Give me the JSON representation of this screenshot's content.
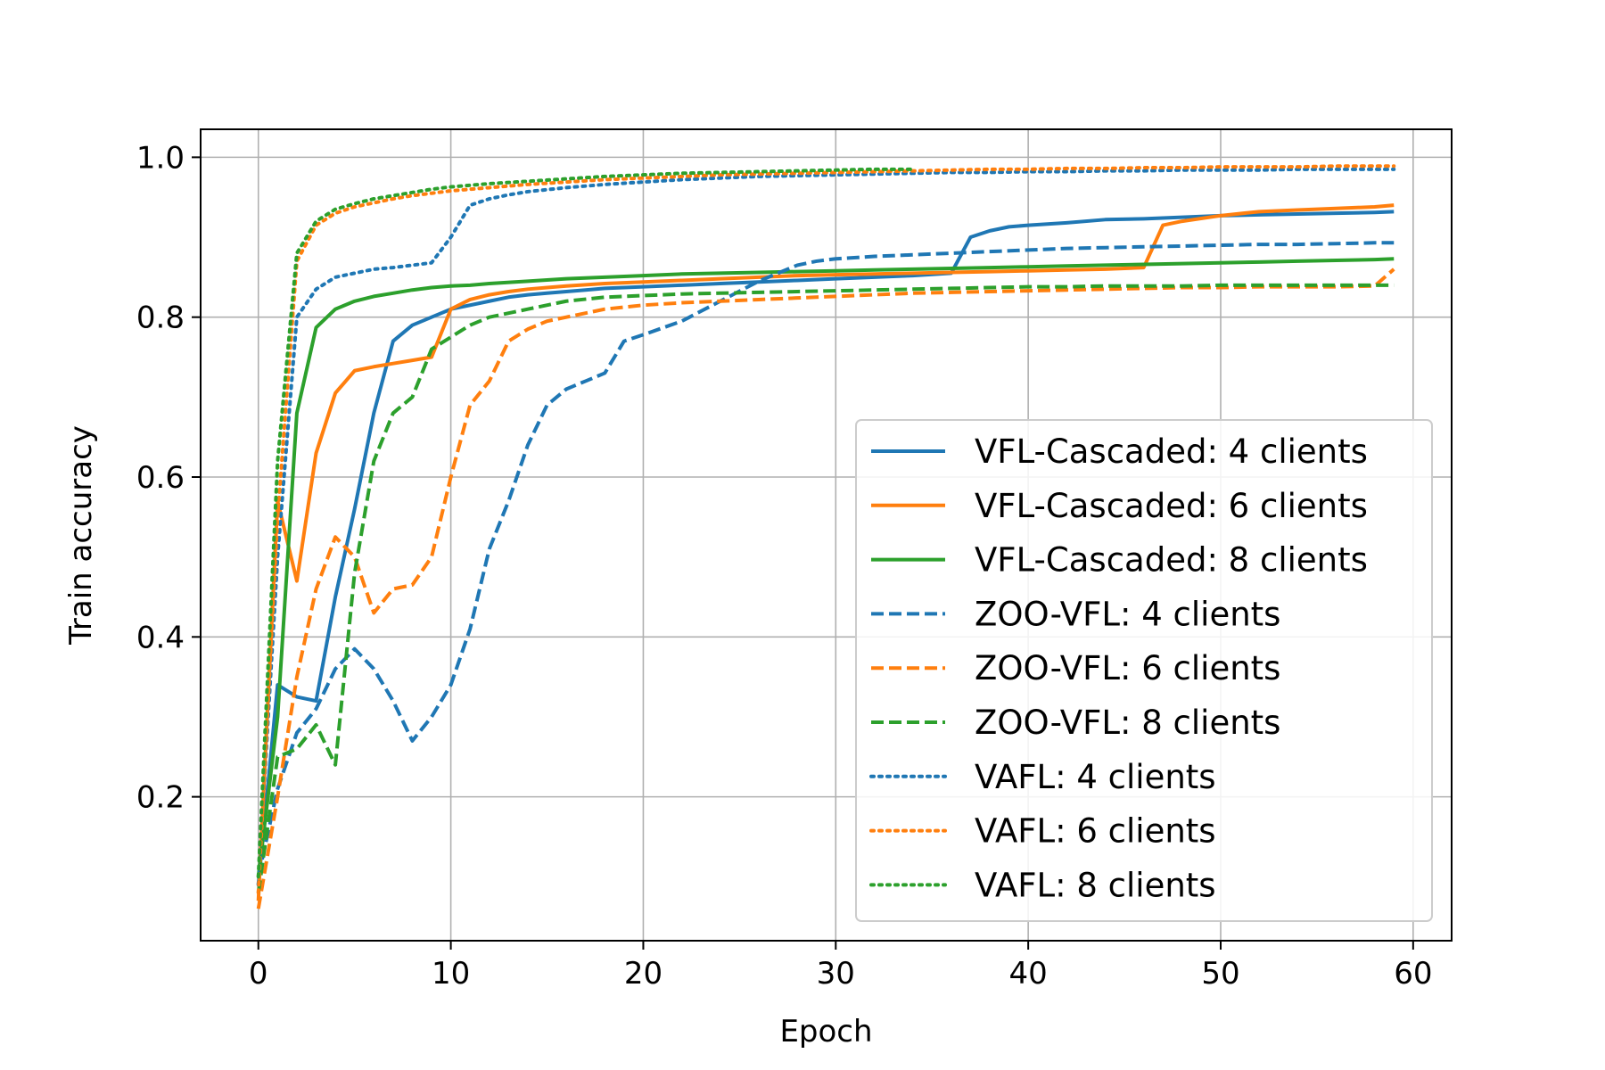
{
  "chart_data": {
    "type": "line",
    "xlabel": "Epoch",
    "ylabel": "Train accuracy",
    "xlim": [
      -3,
      62
    ],
    "ylim": [
      0.02,
      1.035
    ],
    "xticks": [
      0,
      10,
      20,
      30,
      40,
      50,
      60
    ],
    "xtick_labels": [
      "0",
      "10",
      "20",
      "30",
      "40",
      "50",
      "60"
    ],
    "yticks": [
      0.2,
      0.4,
      0.6,
      0.8,
      1.0
    ],
    "ytick_labels": [
      "0.2",
      "0.4",
      "0.6",
      "0.8",
      "1.0"
    ],
    "grid": true,
    "legend_position": "lower-right",
    "series": [
      {
        "name": "VFL-Cascaded: 4 clients",
        "color": "#1f77b4",
        "linestyle": "solid",
        "x": [
          0,
          1,
          2,
          3,
          4,
          5,
          6,
          7,
          8,
          9,
          10,
          11,
          12,
          13,
          14,
          15,
          16,
          17,
          18,
          19,
          20,
          22,
          24,
          26,
          28,
          30,
          32,
          34,
          36,
          37,
          38,
          39,
          40,
          42,
          44,
          46,
          48,
          50,
          52,
          54,
          56,
          58,
          59
        ],
        "y": [
          0.09,
          0.34,
          0.325,
          0.32,
          0.45,
          0.56,
          0.68,
          0.77,
          0.79,
          0.8,
          0.81,
          0.815,
          0.82,
          0.825,
          0.828,
          0.83,
          0.832,
          0.834,
          0.836,
          0.837,
          0.838,
          0.84,
          0.842,
          0.844,
          0.846,
          0.848,
          0.85,
          0.852,
          0.855,
          0.9,
          0.908,
          0.913,
          0.915,
          0.918,
          0.922,
          0.923,
          0.925,
          0.927,
          0.928,
          0.929,
          0.93,
          0.931,
          0.932
        ]
      },
      {
        "name": "VFL-Cascaded: 6 clients",
        "color": "#ff7f0e",
        "linestyle": "solid",
        "x": [
          0,
          1,
          2,
          3,
          4,
          5,
          6,
          7,
          8,
          9,
          10,
          11,
          12,
          13,
          14,
          15,
          16,
          18,
          20,
          22,
          24,
          26,
          28,
          30,
          32,
          34,
          36,
          38,
          40,
          42,
          44,
          46,
          47,
          48,
          50,
          52,
          54,
          56,
          58,
          59
        ],
        "y": [
          0.07,
          0.57,
          0.47,
          0.63,
          0.705,
          0.733,
          0.738,
          0.742,
          0.746,
          0.75,
          0.81,
          0.822,
          0.828,
          0.832,
          0.835,
          0.837,
          0.839,
          0.842,
          0.844,
          0.846,
          0.848,
          0.85,
          0.852,
          0.853,
          0.854,
          0.855,
          0.856,
          0.857,
          0.858,
          0.859,
          0.86,
          0.862,
          0.915,
          0.92,
          0.927,
          0.932,
          0.934,
          0.936,
          0.938,
          0.94
        ]
      },
      {
        "name": "VFL-Cascaded: 8 clients",
        "color": "#2ca02c",
        "linestyle": "solid",
        "x": [
          0,
          1,
          2,
          3,
          4,
          5,
          6,
          7,
          8,
          9,
          10,
          11,
          12,
          14,
          16,
          18,
          20,
          22,
          24,
          26,
          28,
          30,
          32,
          34,
          36,
          38,
          40,
          42,
          44,
          46,
          48,
          50,
          52,
          54,
          56,
          58,
          59
        ],
        "y": [
          0.1,
          0.3,
          0.68,
          0.787,
          0.81,
          0.82,
          0.826,
          0.83,
          0.834,
          0.837,
          0.839,
          0.84,
          0.842,
          0.845,
          0.848,
          0.85,
          0.852,
          0.854,
          0.855,
          0.856,
          0.857,
          0.858,
          0.859,
          0.86,
          0.861,
          0.862,
          0.863,
          0.864,
          0.865,
          0.866,
          0.867,
          0.868,
          0.869,
          0.87,
          0.871,
          0.872,
          0.873
        ]
      },
      {
        "name": "ZOO-VFL: 4 clients",
        "color": "#1f77b4",
        "linestyle": "dashed",
        "x": [
          0,
          1,
          2,
          3,
          4,
          5,
          6,
          7,
          8,
          9,
          10,
          11,
          12,
          13,
          14,
          15,
          16,
          17,
          18,
          19,
          20,
          22,
          24,
          26,
          27,
          28,
          29,
          30,
          32,
          34,
          36,
          38,
          40,
          42,
          44,
          46,
          48,
          50,
          52,
          54,
          56,
          58,
          59
        ],
        "y": [
          0.1,
          0.21,
          0.28,
          0.31,
          0.36,
          0.385,
          0.36,
          0.32,
          0.27,
          0.3,
          0.34,
          0.41,
          0.51,
          0.57,
          0.64,
          0.69,
          0.71,
          0.72,
          0.73,
          0.77,
          0.778,
          0.795,
          0.82,
          0.845,
          0.855,
          0.865,
          0.87,
          0.873,
          0.876,
          0.878,
          0.88,
          0.882,
          0.884,
          0.886,
          0.887,
          0.888,
          0.889,
          0.89,
          0.891,
          0.891,
          0.892,
          0.893,
          0.893
        ]
      },
      {
        "name": "ZOO-VFL: 6 clients",
        "color": "#ff7f0e",
        "linestyle": "dashed",
        "x": [
          0,
          1,
          2,
          3,
          4,
          5,
          6,
          7,
          8,
          9,
          10,
          11,
          12,
          13,
          14,
          15,
          16,
          17,
          18,
          20,
          22,
          24,
          26,
          28,
          30,
          32,
          34,
          36,
          38,
          40,
          42,
          44,
          46,
          48,
          50,
          52,
          54,
          56,
          58,
          59
        ],
        "y": [
          0.06,
          0.2,
          0.35,
          0.46,
          0.525,
          0.5,
          0.43,
          0.46,
          0.465,
          0.5,
          0.6,
          0.69,
          0.72,
          0.77,
          0.785,
          0.795,
          0.8,
          0.805,
          0.81,
          0.815,
          0.818,
          0.82,
          0.822,
          0.824,
          0.826,
          0.828,
          0.83,
          0.831,
          0.832,
          0.833,
          0.834,
          0.835,
          0.836,
          0.837,
          0.837,
          0.838,
          0.838,
          0.838,
          0.839,
          0.86
        ]
      },
      {
        "name": "ZOO-VFL: 8 clients",
        "color": "#2ca02c",
        "linestyle": "dashed",
        "x": [
          0,
          1,
          2,
          3,
          4,
          5,
          6,
          7,
          8,
          9,
          10,
          11,
          12,
          13,
          14,
          16,
          18,
          20,
          22,
          24,
          26,
          28,
          30,
          32,
          34,
          36,
          38,
          40,
          42,
          44,
          46,
          48,
          50,
          52,
          54,
          56,
          58,
          59
        ],
        "y": [
          0.08,
          0.25,
          0.26,
          0.29,
          0.24,
          0.48,
          0.62,
          0.68,
          0.7,
          0.76,
          0.775,
          0.79,
          0.8,
          0.805,
          0.81,
          0.82,
          0.825,
          0.827,
          0.829,
          0.83,
          0.831,
          0.832,
          0.833,
          0.834,
          0.835,
          0.836,
          0.837,
          0.838,
          0.838,
          0.839,
          0.839,
          0.839,
          0.84,
          0.84,
          0.84,
          0.84,
          0.84,
          0.84
        ]
      },
      {
        "name": "VAFL: 4 clients",
        "color": "#1f77b4",
        "linestyle": "dotted",
        "x": [
          0,
          1,
          2,
          3,
          4,
          5,
          6,
          7,
          8,
          9,
          10,
          11,
          12,
          13,
          14,
          16,
          18,
          20,
          22,
          24,
          26,
          28,
          30,
          32,
          34,
          36,
          38,
          40,
          42,
          44,
          46,
          48,
          50,
          52,
          54,
          56,
          58,
          59
        ],
        "y": [
          0.09,
          0.5,
          0.8,
          0.835,
          0.85,
          0.855,
          0.86,
          0.862,
          0.865,
          0.868,
          0.9,
          0.94,
          0.948,
          0.953,
          0.957,
          0.962,
          0.966,
          0.969,
          0.972,
          0.974,
          0.976,
          0.977,
          0.978,
          0.979,
          0.98,
          0.981,
          0.981,
          0.982,
          0.982,
          0.983,
          0.983,
          0.984,
          0.984,
          0.984,
          0.985,
          0.985,
          0.985,
          0.985
        ]
      },
      {
        "name": "VAFL: 6 clients",
        "color": "#ff7f0e",
        "linestyle": "dotted",
        "x": [
          0,
          1,
          2,
          3,
          4,
          5,
          6,
          7,
          8,
          9,
          10,
          12,
          14,
          16,
          18,
          20,
          22,
          24,
          26,
          28,
          30,
          32,
          34,
          36,
          38,
          40,
          42,
          44,
          46,
          48,
          50,
          52,
          54,
          56,
          58,
          59
        ],
        "y": [
          0.08,
          0.55,
          0.87,
          0.915,
          0.93,
          0.938,
          0.943,
          0.948,
          0.952,
          0.955,
          0.958,
          0.962,
          0.966,
          0.969,
          0.972,
          0.974,
          0.976,
          0.978,
          0.979,
          0.98,
          0.981,
          0.982,
          0.983,
          0.984,
          0.985,
          0.985,
          0.986,
          0.986,
          0.987,
          0.987,
          0.988,
          0.988,
          0.988,
          0.989,
          0.989,
          0.989
        ]
      },
      {
        "name": "VAFL: 8 clients",
        "color": "#2ca02c",
        "linestyle": "dotted",
        "x": [
          0,
          1,
          2,
          3,
          4,
          5,
          6,
          7,
          8,
          9,
          10,
          12,
          14,
          16,
          18,
          20,
          22,
          24,
          26,
          28,
          30,
          32,
          34
        ],
        "y": [
          0.1,
          0.62,
          0.88,
          0.92,
          0.935,
          0.942,
          0.948,
          0.952,
          0.956,
          0.96,
          0.963,
          0.967,
          0.97,
          0.973,
          0.976,
          0.978,
          0.98,
          0.981,
          0.982,
          0.983,
          0.984,
          0.985,
          0.985
        ]
      }
    ]
  }
}
